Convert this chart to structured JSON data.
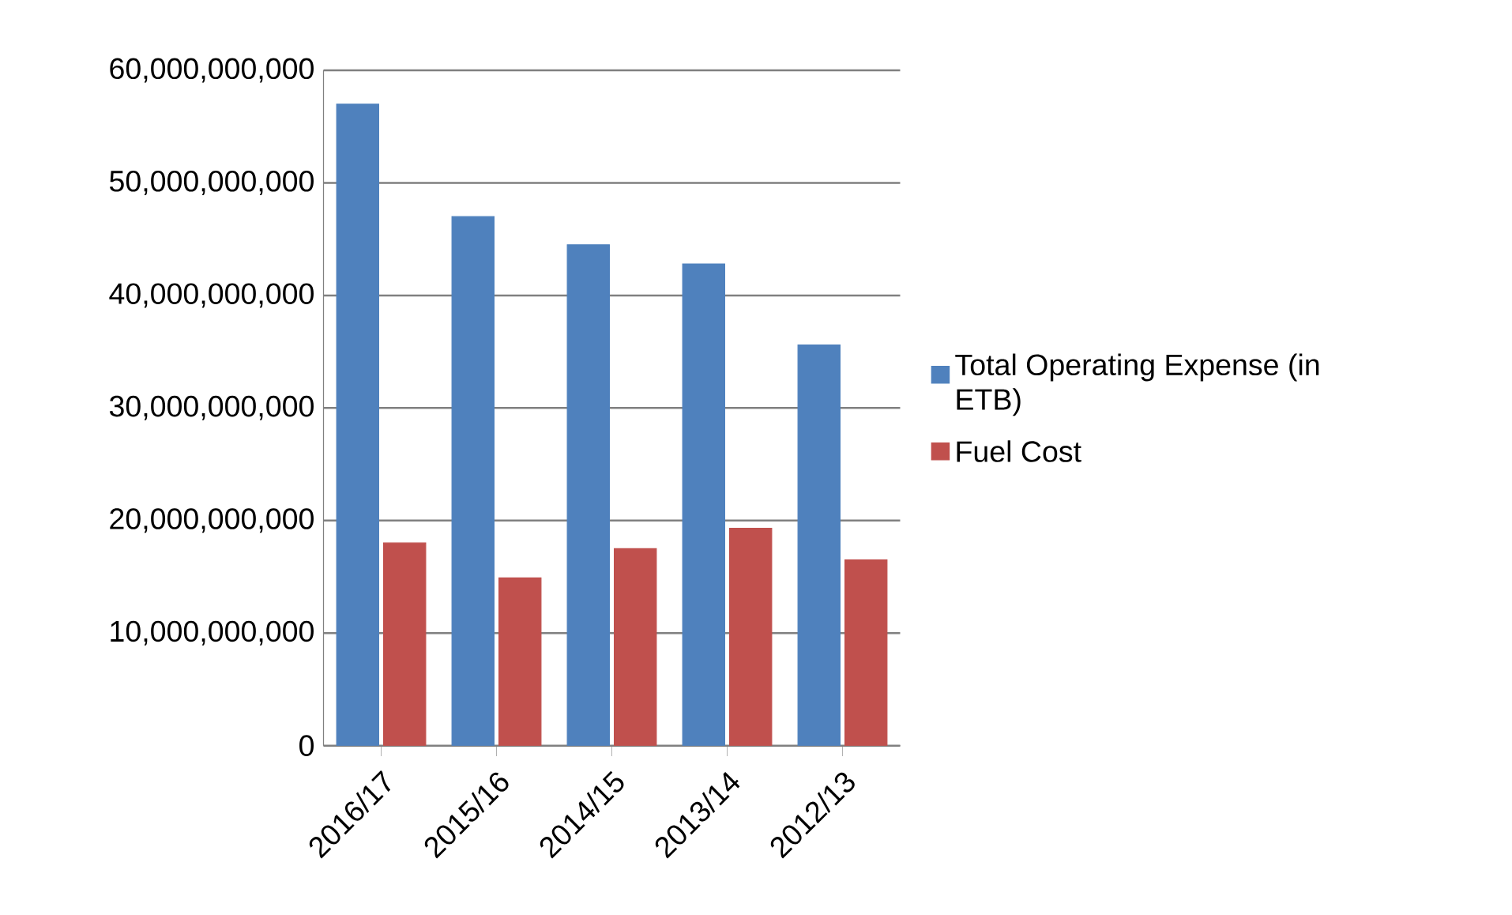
{
  "chart_data": {
    "type": "bar",
    "categories": [
      "2016/17",
      "2015/16",
      "2014/15",
      "2013/14",
      "2012/13"
    ],
    "series": [
      {
        "name": "Total Operating Expense (in ETB)",
        "color": "#4f81bd",
        "values": [
          57000000000,
          47000000000,
          44500000000,
          42800000000,
          35600000000
        ]
      },
      {
        "name": "Fuel Cost",
        "color": "#c0504d",
        "values": [
          18000000000,
          14900000000,
          17500000000,
          19300000000,
          16500000000
        ]
      }
    ],
    "ylim": [
      0,
      60000000000
    ],
    "yticks": [
      0,
      {
        "value": 10000000000,
        "label": "10,000,000,000"
      },
      {
        "value": 20000000000,
        "label": "20,000,000,000"
      },
      {
        "value": 30000000000,
        "label": "30,000,000,000"
      },
      {
        "value": 40000000000,
        "label": "40,000,000,000"
      },
      {
        "value": 50000000000,
        "label": "50,000,000,000"
      },
      {
        "value": 60000000000,
        "label": "60,000,000,000"
      }
    ],
    "grid": "y",
    "legend": "right"
  }
}
